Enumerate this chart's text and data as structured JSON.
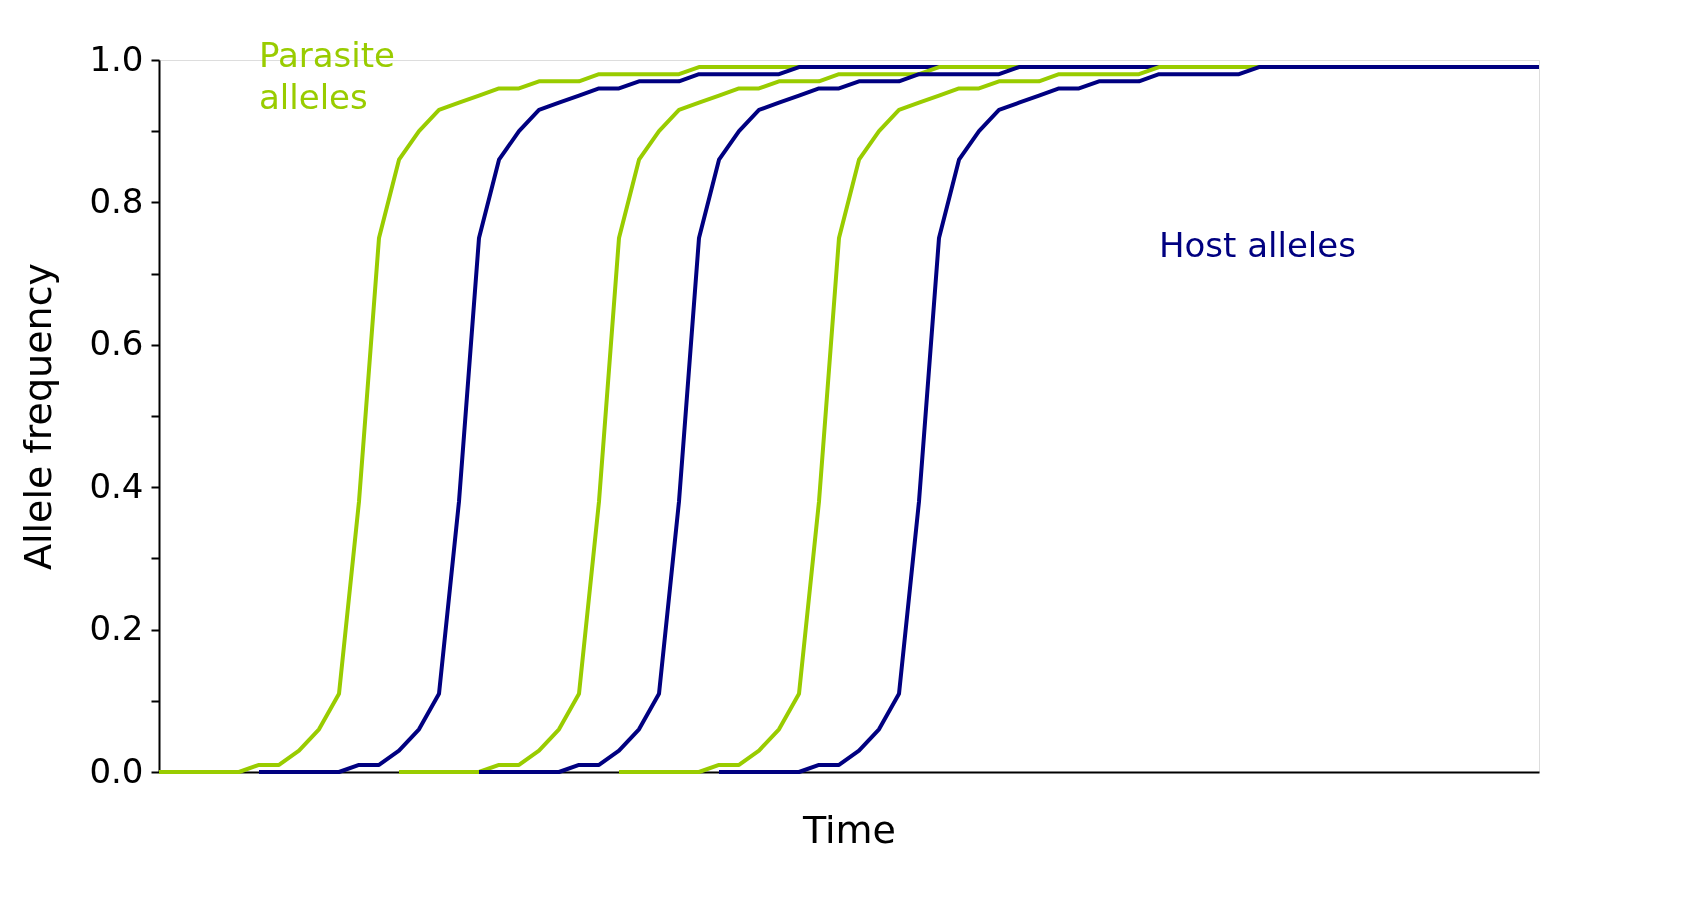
{
  "chart_data": {
    "type": "line",
    "xlabel": "Time",
    "ylabel": "Allele frequency",
    "categories": [
      null,
      null,
      null,
      null,
      null,
      null,
      null,
      null,
      null,
      null,
      null,
      null,
      null,
      null,
      null,
      null,
      null,
      null,
      null,
      null,
      null,
      null,
      null,
      null,
      null,
      null,
      null,
      null,
      null,
      null,
      null,
      null,
      null,
      null,
      null,
      null,
      null,
      null,
      null,
      null,
      null,
      null,
      null,
      null,
      null,
      null,
      null,
      null,
      null,
      null,
      null,
      null,
      null,
      null,
      null,
      null,
      null,
      null,
      null,
      null,
      null,
      null,
      null,
      null,
      null,
      null,
      null,
      null,
      null,
      null
    ],
    "ylim": [
      0,
      1
    ],
    "yticks": [
      {
        "value": 0,
        "label": "0.0"
      },
      {
        "value": 0.1,
        "label": null
      },
      {
        "value": 0.2,
        "label": "0.2"
      },
      {
        "value": 0.3,
        "label": null
      },
      {
        "value": 0.4,
        "label": "0.4"
      },
      {
        "value": 0.5,
        "label": null
      },
      {
        "value": 0.6,
        "label": "0.6"
      },
      {
        "value": 0.7,
        "label": null
      },
      {
        "value": 0.8,
        "label": "0.8"
      },
      {
        "value": 0.9,
        "label": null
      },
      {
        "value": 1,
        "label": "1.0"
      }
    ],
    "tick_labels": "y",
    "grid": false,
    "legend": false,
    "marker": "none",
    "line_style": "solid",
    "series": [
      {
        "name": "Parasite alleles",
        "color": "#99cc00",
        "values": [
          0,
          0,
          0,
          0,
          0,
          0.01,
          0.01,
          0.03,
          0.06,
          0.11,
          0.38,
          0.75,
          0.86,
          0.9,
          0.93,
          0.94,
          0.95,
          0.96,
          0.96,
          0.97,
          0.97,
          0.97,
          0.98,
          0.98,
          0.98,
          0.98,
          0.98,
          0.99,
          0.99,
          0.99,
          0.99,
          0.99,
          0.99,
          null,
          null,
          null,
          null,
          null,
          null,
          null,
          null,
          null,
          null,
          null,
          null,
          null,
          null,
          null,
          null,
          null,
          null,
          null,
          null,
          null,
          null,
          null,
          null,
          null,
          null,
          null,
          null,
          null,
          null,
          null,
          null,
          null,
          null,
          null,
          null,
          null
        ]
      },
      {
        "name": "Host alleles",
        "color": "#000080",
        "values": [
          null,
          null,
          null,
          null,
          null,
          0,
          0,
          0,
          0,
          0,
          0.01,
          0.01,
          0.03,
          0.06,
          0.11,
          0.38,
          0.75,
          0.86,
          0.9,
          0.93,
          0.94,
          0.95,
          0.96,
          0.96,
          0.97,
          0.97,
          0.97,
          0.98,
          0.98,
          0.98,
          0.98,
          0.98,
          0.99,
          0.99,
          0.99,
          0.99,
          0.99,
          0.99,
          0.99,
          0.99,
          0.99,
          null,
          null,
          null,
          null,
          null,
          null,
          null,
          null,
          null,
          null,
          null,
          null,
          null,
          null,
          null,
          null,
          null,
          null,
          null,
          null,
          null,
          null,
          null,
          null,
          null,
          null,
          null,
          null,
          null
        ]
      },
      {
        "color": "#99cc00",
        "values": [
          null,
          null,
          null,
          null,
          null,
          null,
          null,
          null,
          null,
          null,
          null,
          null,
          0,
          0,
          0,
          0,
          0,
          0.01,
          0.01,
          0.03,
          0.06,
          0.11,
          0.38,
          0.75,
          0.86,
          0.9,
          0.93,
          0.94,
          0.95,
          0.96,
          0.96,
          0.97,
          0.97,
          0.97,
          0.98,
          0.98,
          0.98,
          0.98,
          0.98,
          0.99,
          0.99,
          0.99,
          0.99,
          0.99,
          null,
          null,
          null,
          null,
          null,
          null,
          null,
          null,
          null,
          null,
          null,
          null,
          null,
          null,
          null,
          null,
          null,
          null,
          null,
          null,
          null,
          null,
          null,
          null,
          null,
          null
        ]
      },
      {
        "color": "#000080",
        "values": [
          null,
          null,
          null,
          null,
          null,
          null,
          null,
          null,
          null,
          null,
          null,
          null,
          null,
          null,
          null,
          null,
          0,
          0,
          0,
          0,
          0,
          0.01,
          0.01,
          0.03,
          0.06,
          0.11,
          0.38,
          0.75,
          0.86,
          0.9,
          0.93,
          0.94,
          0.95,
          0.96,
          0.96,
          0.97,
          0.97,
          0.97,
          0.98,
          0.98,
          0.98,
          0.98,
          0.98,
          0.99,
          0.99,
          0.99,
          0.99,
          0.99,
          0.99,
          0.99,
          0.99,
          0.99,
          null,
          null,
          null,
          null,
          null,
          null,
          null,
          null,
          null,
          null,
          null,
          null,
          null,
          null,
          null,
          null,
          null,
          null
        ]
      },
      {
        "color": "#99cc00",
        "values": [
          null,
          null,
          null,
          null,
          null,
          null,
          null,
          null,
          null,
          null,
          null,
          null,
          null,
          null,
          null,
          null,
          null,
          null,
          null,
          null,
          null,
          null,
          null,
          0,
          0,
          0,
          0,
          0,
          0.01,
          0.01,
          0.03,
          0.06,
          0.11,
          0.38,
          0.75,
          0.86,
          0.9,
          0.93,
          0.94,
          0.95,
          0.96,
          0.96,
          0.97,
          0.97,
          0.97,
          0.98,
          0.98,
          0.98,
          0.98,
          0.98,
          0.99,
          0.99,
          0.99,
          0.99,
          0.99,
          0.99,
          null,
          null,
          null,
          null,
          null,
          null,
          null,
          null,
          null,
          null,
          null,
          null,
          null,
          null
        ]
      },
      {
        "color": "#000080",
        "values": [
          null,
          null,
          null,
          null,
          null,
          null,
          null,
          null,
          null,
          null,
          null,
          null,
          null,
          null,
          null,
          null,
          null,
          null,
          null,
          null,
          null,
          null,
          null,
          null,
          null,
          null,
          null,
          null,
          0,
          0,
          0,
          0,
          0,
          0.01,
          0.01,
          0.03,
          0.06,
          0.11,
          0.38,
          0.75,
          0.86,
          0.9,
          0.93,
          0.94,
          0.95,
          0.96,
          0.96,
          0.97,
          0.97,
          0.97,
          0.98,
          0.98,
          0.98,
          0.98,
          0.98,
          0.99,
          0.99,
          0.99,
          0.99,
          0.99,
          0.99,
          0.99,
          0.99,
          0.99,
          0.99,
          0.99,
          0.99,
          0.99,
          0.99,
          0.99
        ]
      }
    ]
  }
}
